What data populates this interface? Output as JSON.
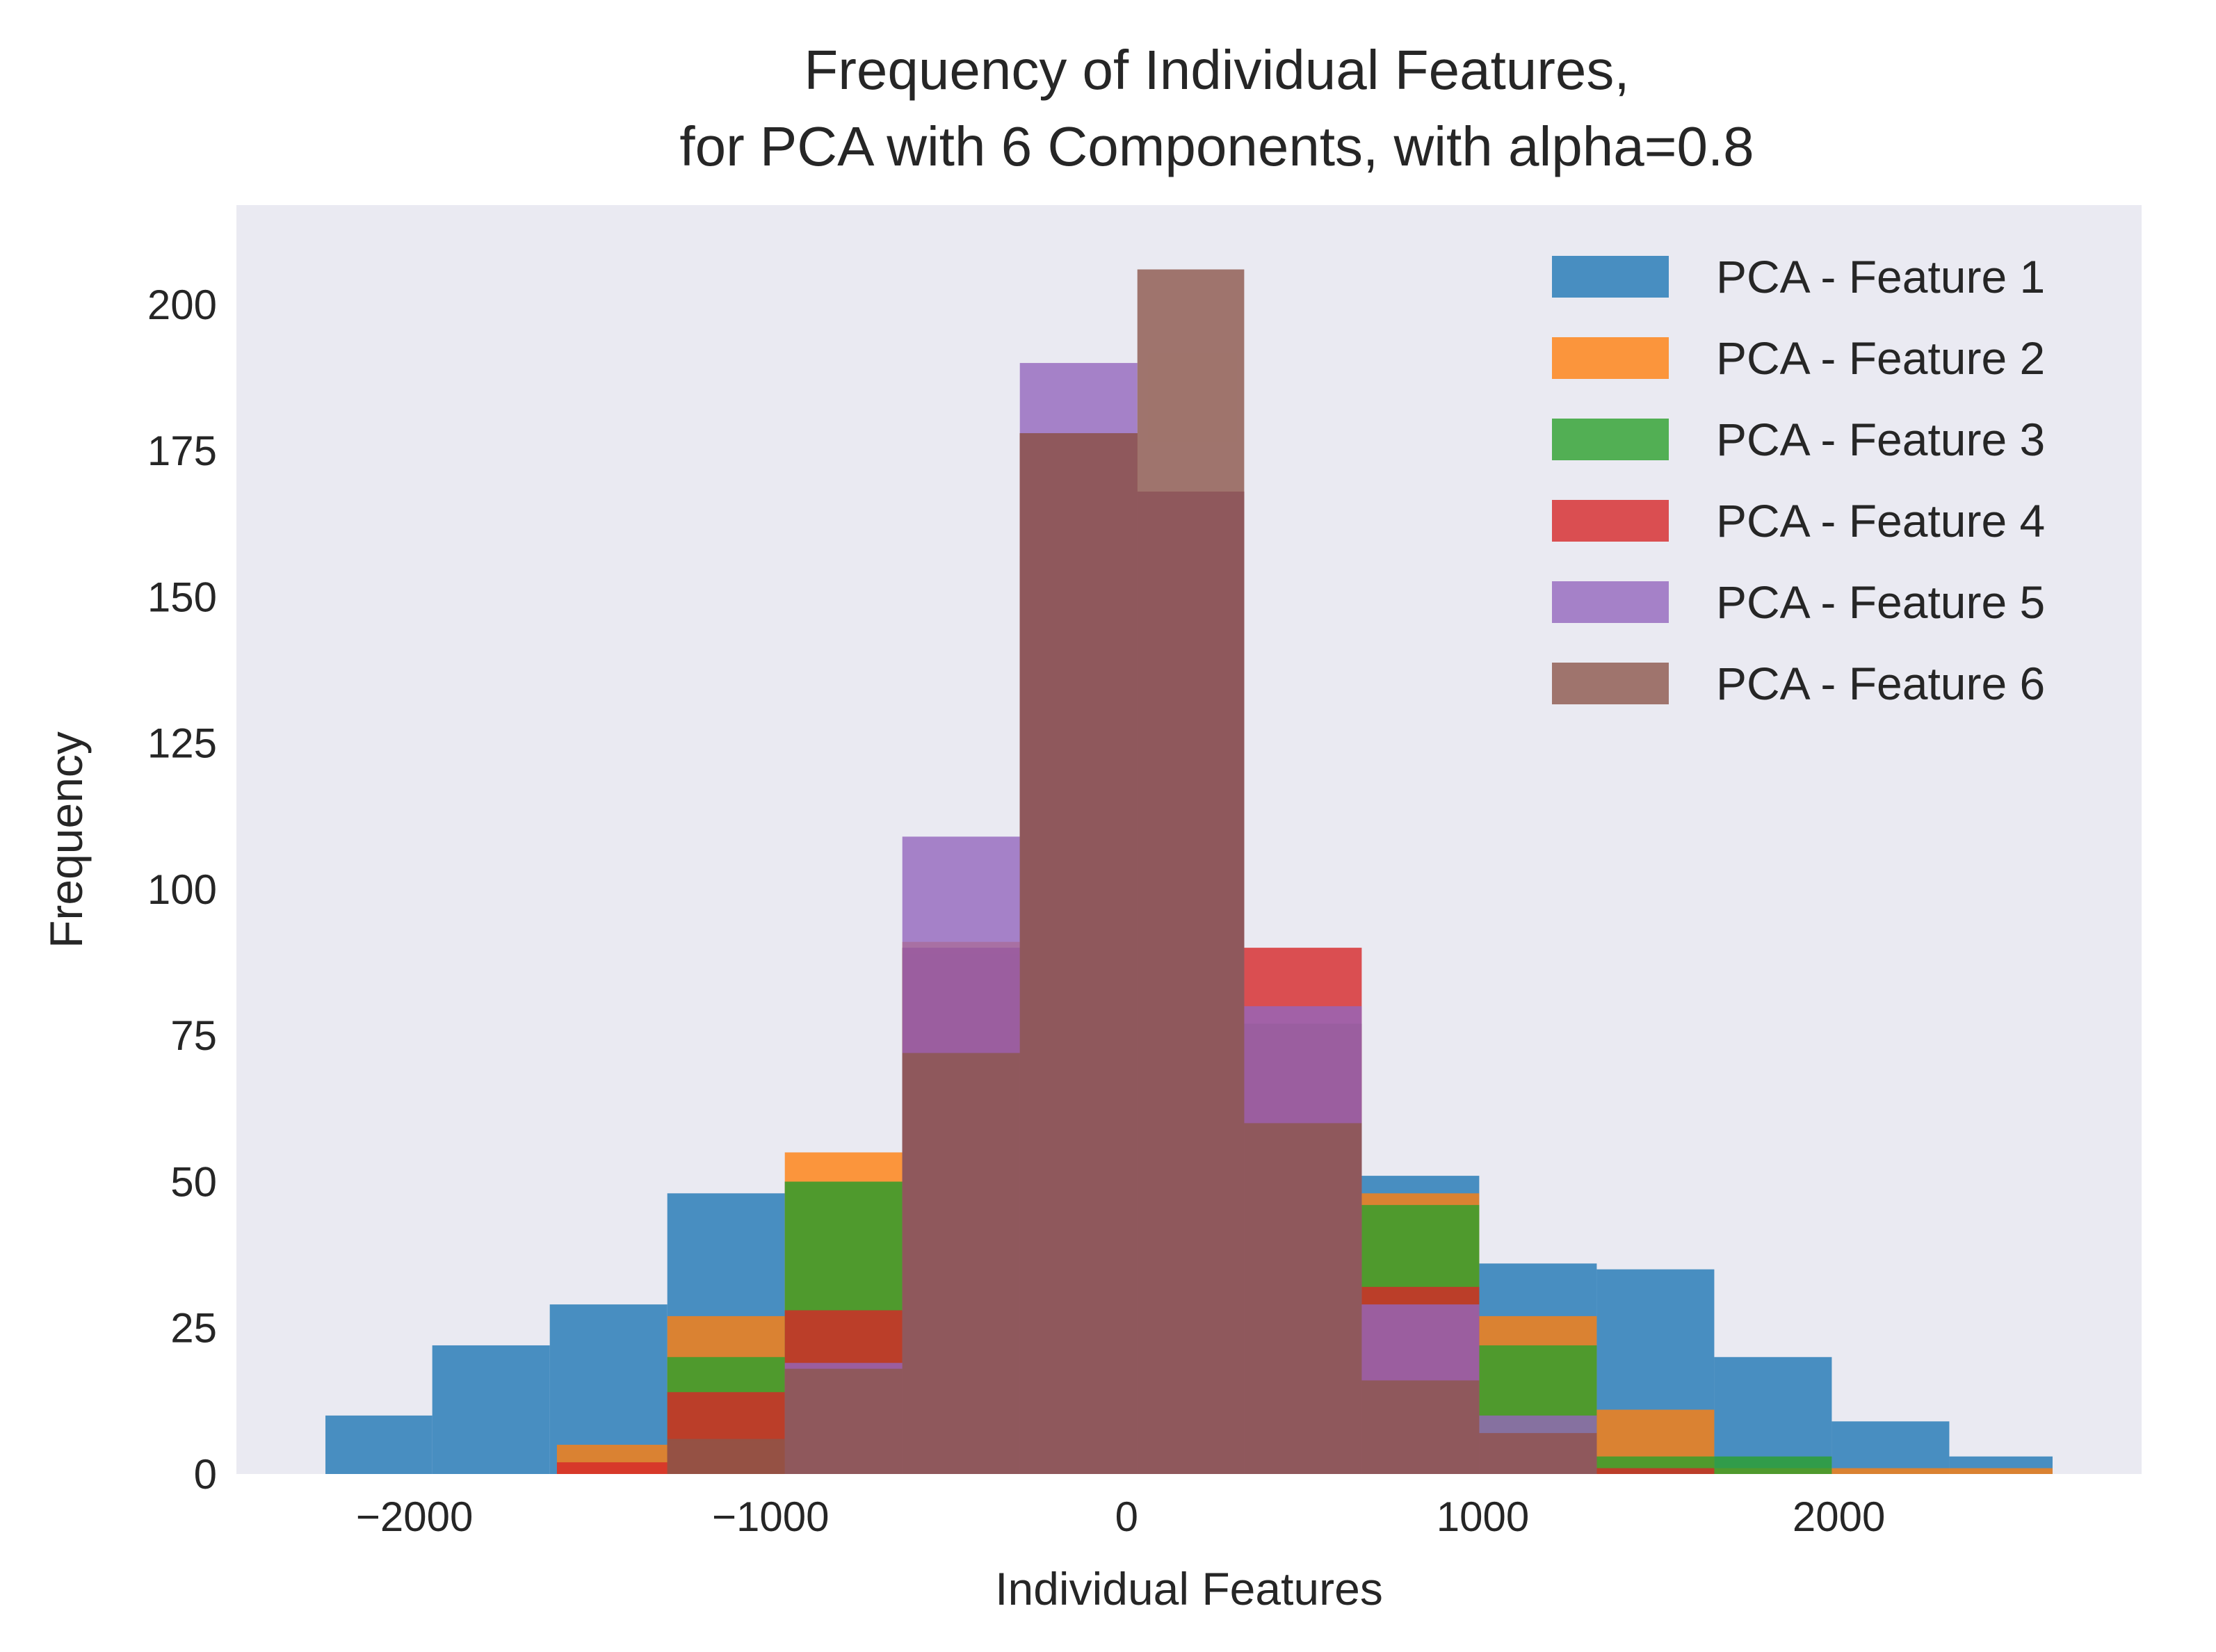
{
  "chart_data": {
    "type": "bar",
    "title": [
      "Frequency of Individual Features,",
      "for PCA with 6 Components, with alpha=0.8"
    ],
    "xlabel": "Individual Features",
    "ylabel": "Frequency",
    "xlim": [
      -2500,
      2850
    ],
    "ylim": [
      0,
      217
    ],
    "xticks": [
      -2000,
      -1000,
      0,
      1000,
      2000
    ],
    "xtick_labels": [
      "−2000",
      "−1000",
      "0",
      "1000",
      "2000"
    ],
    "yticks": [
      0,
      25,
      50,
      75,
      100,
      125,
      150,
      175,
      200
    ],
    "ytick_labels": [
      "0",
      "25",
      "50",
      "75",
      "100",
      "125",
      "150",
      "175",
      "200"
    ],
    "grid": false,
    "alpha": 0.8,
    "legend_position": "top-right",
    "background": "#eaeaf2",
    "series": [
      {
        "name": "PCA - Feature 1",
        "color": "#1f77b4",
        "bin_edges": [
          -2250,
          -1950,
          -1620,
          -1290,
          -960,
          -630,
          -300,
          30,
          330,
          660,
          990,
          1320,
          1650,
          1980,
          2310,
          2600
        ],
        "counts": [
          10,
          22,
          29,
          48,
          50,
          89,
          157,
          124,
          77,
          51,
          36,
          35,
          20,
          9,
          3
        ]
      },
      {
        "name": "PCA - Feature 2",
        "color": "#ff7f0e",
        "bin_edges": [
          -1600,
          -1290,
          -960,
          -630,
          -300,
          30,
          330,
          660,
          990,
          1320,
          1650,
          1980,
          2600
        ],
        "counts": [
          5,
          27,
          55,
          91,
          178,
          168,
          76,
          48,
          27,
          11,
          1,
          1
        ]
      },
      {
        "name": "PCA - Feature 3",
        "color": "#2ca02c",
        "bin_edges": [
          -1290,
          -960,
          -630,
          -300,
          30,
          330,
          660,
          990,
          1320,
          1650,
          1980
        ],
        "counts": [
          20,
          50,
          90,
          178,
          168,
          77,
          46,
          22,
          3,
          3
        ]
      },
      {
        "name": "PCA - Feature 4",
        "color": "#d62728",
        "bin_edges": [
          -1600,
          -1290,
          -960,
          -630,
          -300,
          30,
          330,
          660,
          990,
          1320,
          1650
        ],
        "counts": [
          2,
          14,
          28,
          90,
          178,
          168,
          90,
          32,
          7,
          1
        ]
      },
      {
        "name": "PCA - Feature 5",
        "color": "#9467bd",
        "bin_edges": [
          -960,
          -630,
          -300,
          30,
          330,
          660,
          990,
          1320
        ],
        "counts": [
          19,
          109,
          190,
          168,
          80,
          29,
          10
        ]
      },
      {
        "name": "PCA - Feature 6",
        "color": "#8c564b",
        "bin_edges": [
          -1290,
          -960,
          -630,
          -300,
          30,
          330,
          660,
          990,
          1320
        ],
        "counts": [
          6,
          18,
          72,
          178,
          206,
          60,
          16,
          7
        ]
      }
    ]
  }
}
